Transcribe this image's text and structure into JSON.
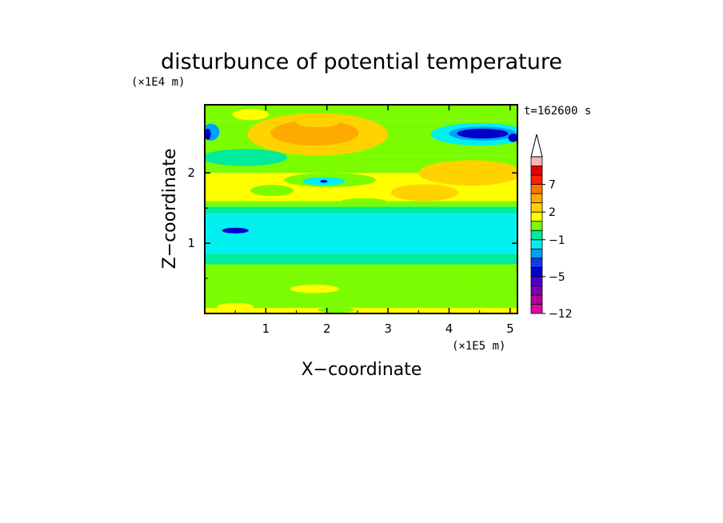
{
  "chart_data": {
    "type": "heatmap",
    "title": "disturbunce of potential temperature",
    "xlabel": "X−coordinate",
    "ylabel": "Z−coordinate",
    "x_unit": "(×1E5 m)",
    "y_unit": "(×1E4 m)",
    "time_label": "t=162600 s",
    "xlim": [
      0,
      5.12
    ],
    "ylim": [
      0,
      2.97
    ],
    "x_ticks": [
      1,
      2,
      3,
      4,
      5
    ],
    "y_ticks": [
      1,
      2
    ],
    "colorbar": {
      "levels": [
        -12,
        -11,
        -9,
        -7,
        -5,
        -4,
        -3,
        -2,
        -1,
        0,
        1,
        2,
        3,
        5,
        7,
        9,
        11
      ],
      "colors": [
        "#e600aa",
        "#b4009b",
        "#7d00b4",
        "#4b00cd",
        "#0000c8",
        "#0f3cf0",
        "#00a0ff",
        "#00f0f0",
        "#00eb9b",
        "#7cfc00",
        "#ffff00",
        "#ffd200",
        "#ffaa00",
        "#ff7300",
        "#ff1e00",
        "#e60000",
        "#ffb4b4"
      ],
      "tick_labels": [
        {
          "value": -12,
          "text": "−12"
        },
        {
          "value": -5,
          "text": "−5"
        },
        {
          "value": -1,
          "text": "−1"
        },
        {
          "value": 2,
          "text": "2"
        },
        {
          "value": 7,
          "text": "7"
        }
      ],
      "extend": "max"
    },
    "layers": [
      {
        "z_from": 0.0,
        "z_to": 0.08,
        "value": 1.5
      },
      {
        "z_from": 0.08,
        "z_to": 0.22,
        "value": 0.6
      },
      {
        "z_from": 0.22,
        "z_to": 0.55,
        "value": 0.6
      },
      {
        "z_from": 0.55,
        "z_to": 0.7,
        "value": 0.3
      },
      {
        "z_from": 0.7,
        "z_to": 0.85,
        "value": -0.5
      },
      {
        "z_from": 0.85,
        "z_to": 1.42,
        "value": -1.5
      },
      {
        "z_from": 1.42,
        "z_to": 1.52,
        "value": -0.5
      },
      {
        "z_from": 1.52,
        "z_to": 1.6,
        "value": 0.3
      },
      {
        "z_from": 1.6,
        "z_to": 2.0,
        "value": 1.5
      },
      {
        "z_from": 2.0,
        "z_to": 2.25,
        "value": 0.6
      },
      {
        "z_from": 2.25,
        "z_to": 2.5,
        "value": 0.3
      },
      {
        "z_from": 2.5,
        "z_to": 2.75,
        "value": 0.3
      },
      {
        "z_from": 2.75,
        "z_to": 2.97,
        "value": 0.3
      }
    ],
    "features": [
      {
        "x": 0.5,
        "z": 1.18,
        "rx": 0.22,
        "rz": 0.04,
        "value": -4.5
      },
      {
        "x": 0.65,
        "z": 2.22,
        "rx": 0.7,
        "rz": 0.12,
        "value": -0.5
      },
      {
        "x": 2.05,
        "z": 1.9,
        "rx": 0.75,
        "rz": 0.1,
        "value": 0.6
      },
      {
        "x": 1.95,
        "z": 1.88,
        "rx": 0.35,
        "rz": 0.06,
        "value": -1.5
      },
      {
        "x": 1.95,
        "z": 1.88,
        "rx": 0.06,
        "rz": 0.02,
        "value": -4.5
      },
      {
        "x": 1.85,
        "z": 2.55,
        "rx": 1.15,
        "rz": 0.3,
        "value": 2.5
      },
      {
        "x": 1.8,
        "z": 2.57,
        "rx": 0.72,
        "rz": 0.18,
        "value": 4.0
      },
      {
        "x": 1.85,
        "z": 2.72,
        "rx": 0.35,
        "rz": 0.07,
        "value": 2.5
      },
      {
        "x": 0.75,
        "z": 2.83,
        "rx": 0.3,
        "rz": 0.08,
        "value": 1.5
      },
      {
        "x": 0.1,
        "z": 2.58,
        "rx": 0.14,
        "rz": 0.12,
        "value": -2.5
      },
      {
        "x": 0.05,
        "z": 2.55,
        "rx": 0.05,
        "rz": 0.08,
        "value": -4.5
      },
      {
        "x": 4.5,
        "z": 2.55,
        "rx": 0.8,
        "rz": 0.16,
        "value": -1.5
      },
      {
        "x": 4.55,
        "z": 2.56,
        "rx": 0.55,
        "rz": 0.1,
        "value": -2.5
      },
      {
        "x": 4.55,
        "z": 2.56,
        "rx": 0.42,
        "rz": 0.07,
        "value": -4.5
      },
      {
        "x": 5.05,
        "z": 2.5,
        "rx": 0.08,
        "rz": 0.06,
        "value": -4.5
      },
      {
        "x": 4.35,
        "z": 2.0,
        "rx": 0.85,
        "rz": 0.18,
        "value": 2.5
      },
      {
        "x": 3.6,
        "z": 1.72,
        "rx": 0.55,
        "rz": 0.12,
        "value": 2.5
      },
      {
        "x": 1.1,
        "z": 1.75,
        "rx": 0.35,
        "rz": 0.08,
        "value": 0.3
      },
      {
        "x": 2.6,
        "z": 1.58,
        "rx": 0.4,
        "rz": 0.06,
        "value": 0.3
      },
      {
        "x": 4.4,
        "z": 0.6,
        "rx": 0.35,
        "rz": 0.07,
        "value": 0.3
      },
      {
        "x": 3.2,
        "z": 0.5,
        "rx": 0.3,
        "rz": 0.06,
        "value": 0.3
      },
      {
        "x": 2.4,
        "z": 0.42,
        "rx": 0.22,
        "rz": 0.07,
        "value": 0.3
      },
      {
        "x": 1.8,
        "z": 0.35,
        "rx": 0.4,
        "rz": 0.06,
        "value": 1.5
      },
      {
        "x": 0.2,
        "z": 0.45,
        "rx": 0.25,
        "rz": 0.05,
        "value": 0.3
      },
      {
        "x": 2.15,
        "z": 0.05,
        "rx": 0.3,
        "rz": 0.04,
        "value": 0.3
      },
      {
        "x": 0.5,
        "z": 0.1,
        "rx": 0.3,
        "rz": 0.05,
        "value": 1.5
      }
    ]
  }
}
